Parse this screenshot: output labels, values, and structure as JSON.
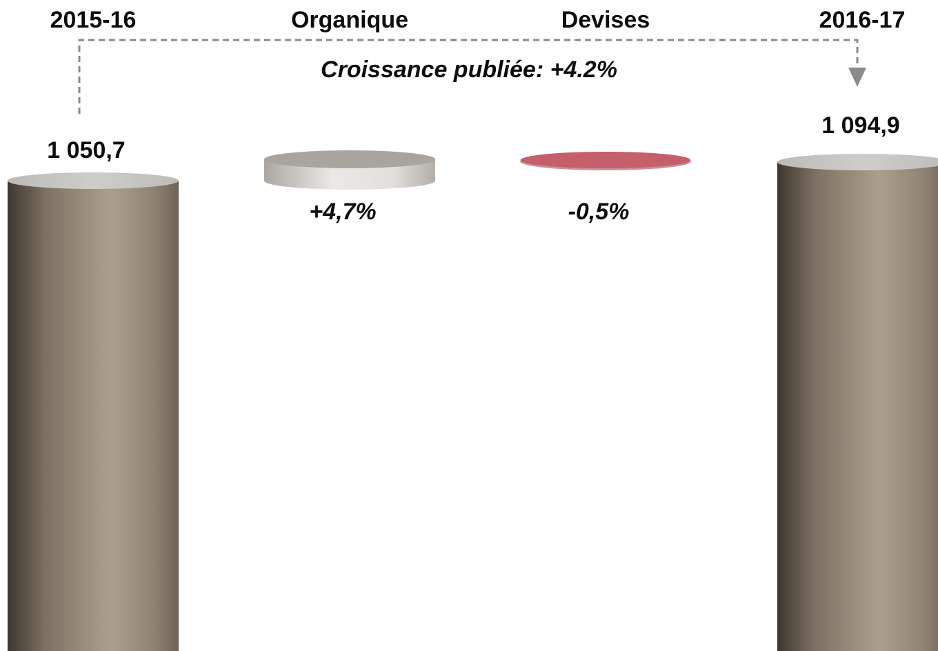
{
  "chart_data": {
    "type": "bar",
    "subtype": "waterfall",
    "categories": [
      "2015-16",
      "Organique",
      "Devises",
      "2016-17"
    ],
    "values": [
      1050.7,
      4.7,
      -0.5,
      1094.9
    ],
    "labels": [
      "1 050,7",
      "+4,7%",
      "-0,5%",
      "1 094,9"
    ],
    "annotation": "Croissance publiée: +4.2%",
    "colors": {
      "total_bar": "#a89c8c",
      "total_bar_dark": "#3e3730",
      "total_top": "#c6c4c0",
      "positive_step": "#d8d6d2",
      "positive_top": "#a9a49e",
      "negative_step": "#c55f6b",
      "arrow": "#8a8a8a"
    }
  }
}
